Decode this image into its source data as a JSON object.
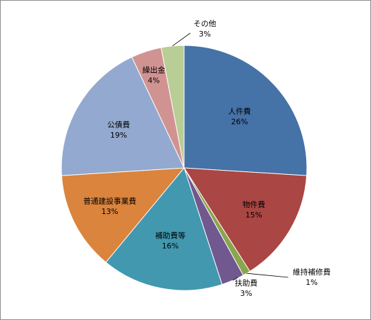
{
  "chart_data": {
    "type": "pie",
    "title": "",
    "categories": [
      "人件費",
      "物件費",
      "維持補修費",
      "扶助費",
      "補助費等",
      "普通建設事業費",
      "公債費",
      "繰出金",
      "その他"
    ],
    "values": [
      26,
      15,
      1,
      3,
      16,
      13,
      19,
      4,
      3
    ],
    "value_labels": [
      "26%",
      "15%",
      "1%",
      "3%",
      "16%",
      "13%",
      "19%",
      "4%",
      "3%"
    ],
    "colors": [
      "#4572A7",
      "#AA4643",
      "#89A54E",
      "#71588F",
      "#4198AF",
      "#DB843D",
      "#93A9CF",
      "#D19392",
      "#B9CD96"
    ],
    "start_angle_deg": 0,
    "direction": "clockwise",
    "legend": "none"
  }
}
